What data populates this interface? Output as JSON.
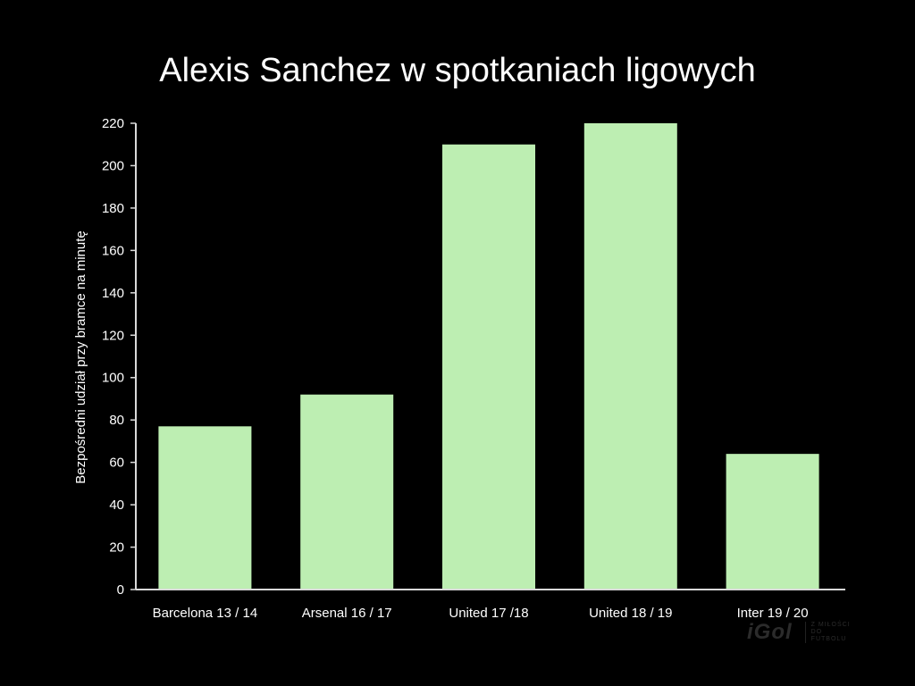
{
  "chart_data": {
    "type": "bar",
    "title": "Alexis Sanchez w spotkaniach ligowych",
    "xlabel": "",
    "ylabel": "Bezpośredni udział przy bramce na minutę",
    "categories": [
      "Barcelona 13 / 14",
      "Arsenal 16 / 17",
      "United 17 /18",
      "United 18 / 19",
      "Inter 19 / 20"
    ],
    "values": [
      77,
      92,
      210,
      220,
      64
    ],
    "ylim": [
      0,
      220
    ],
    "yticks": [
      0,
      20,
      40,
      60,
      80,
      100,
      120,
      140,
      160,
      180,
      200,
      220
    ],
    "grid": false,
    "legend": "none",
    "colors": {
      "background": "#000000",
      "bar": "#bdeeb2",
      "axis": "#d9d9d9",
      "text": "#ffffff"
    }
  },
  "watermark": {
    "logo": "iGol",
    "tagline": "Z MIŁOŚCI DO FUTBOLU"
  }
}
